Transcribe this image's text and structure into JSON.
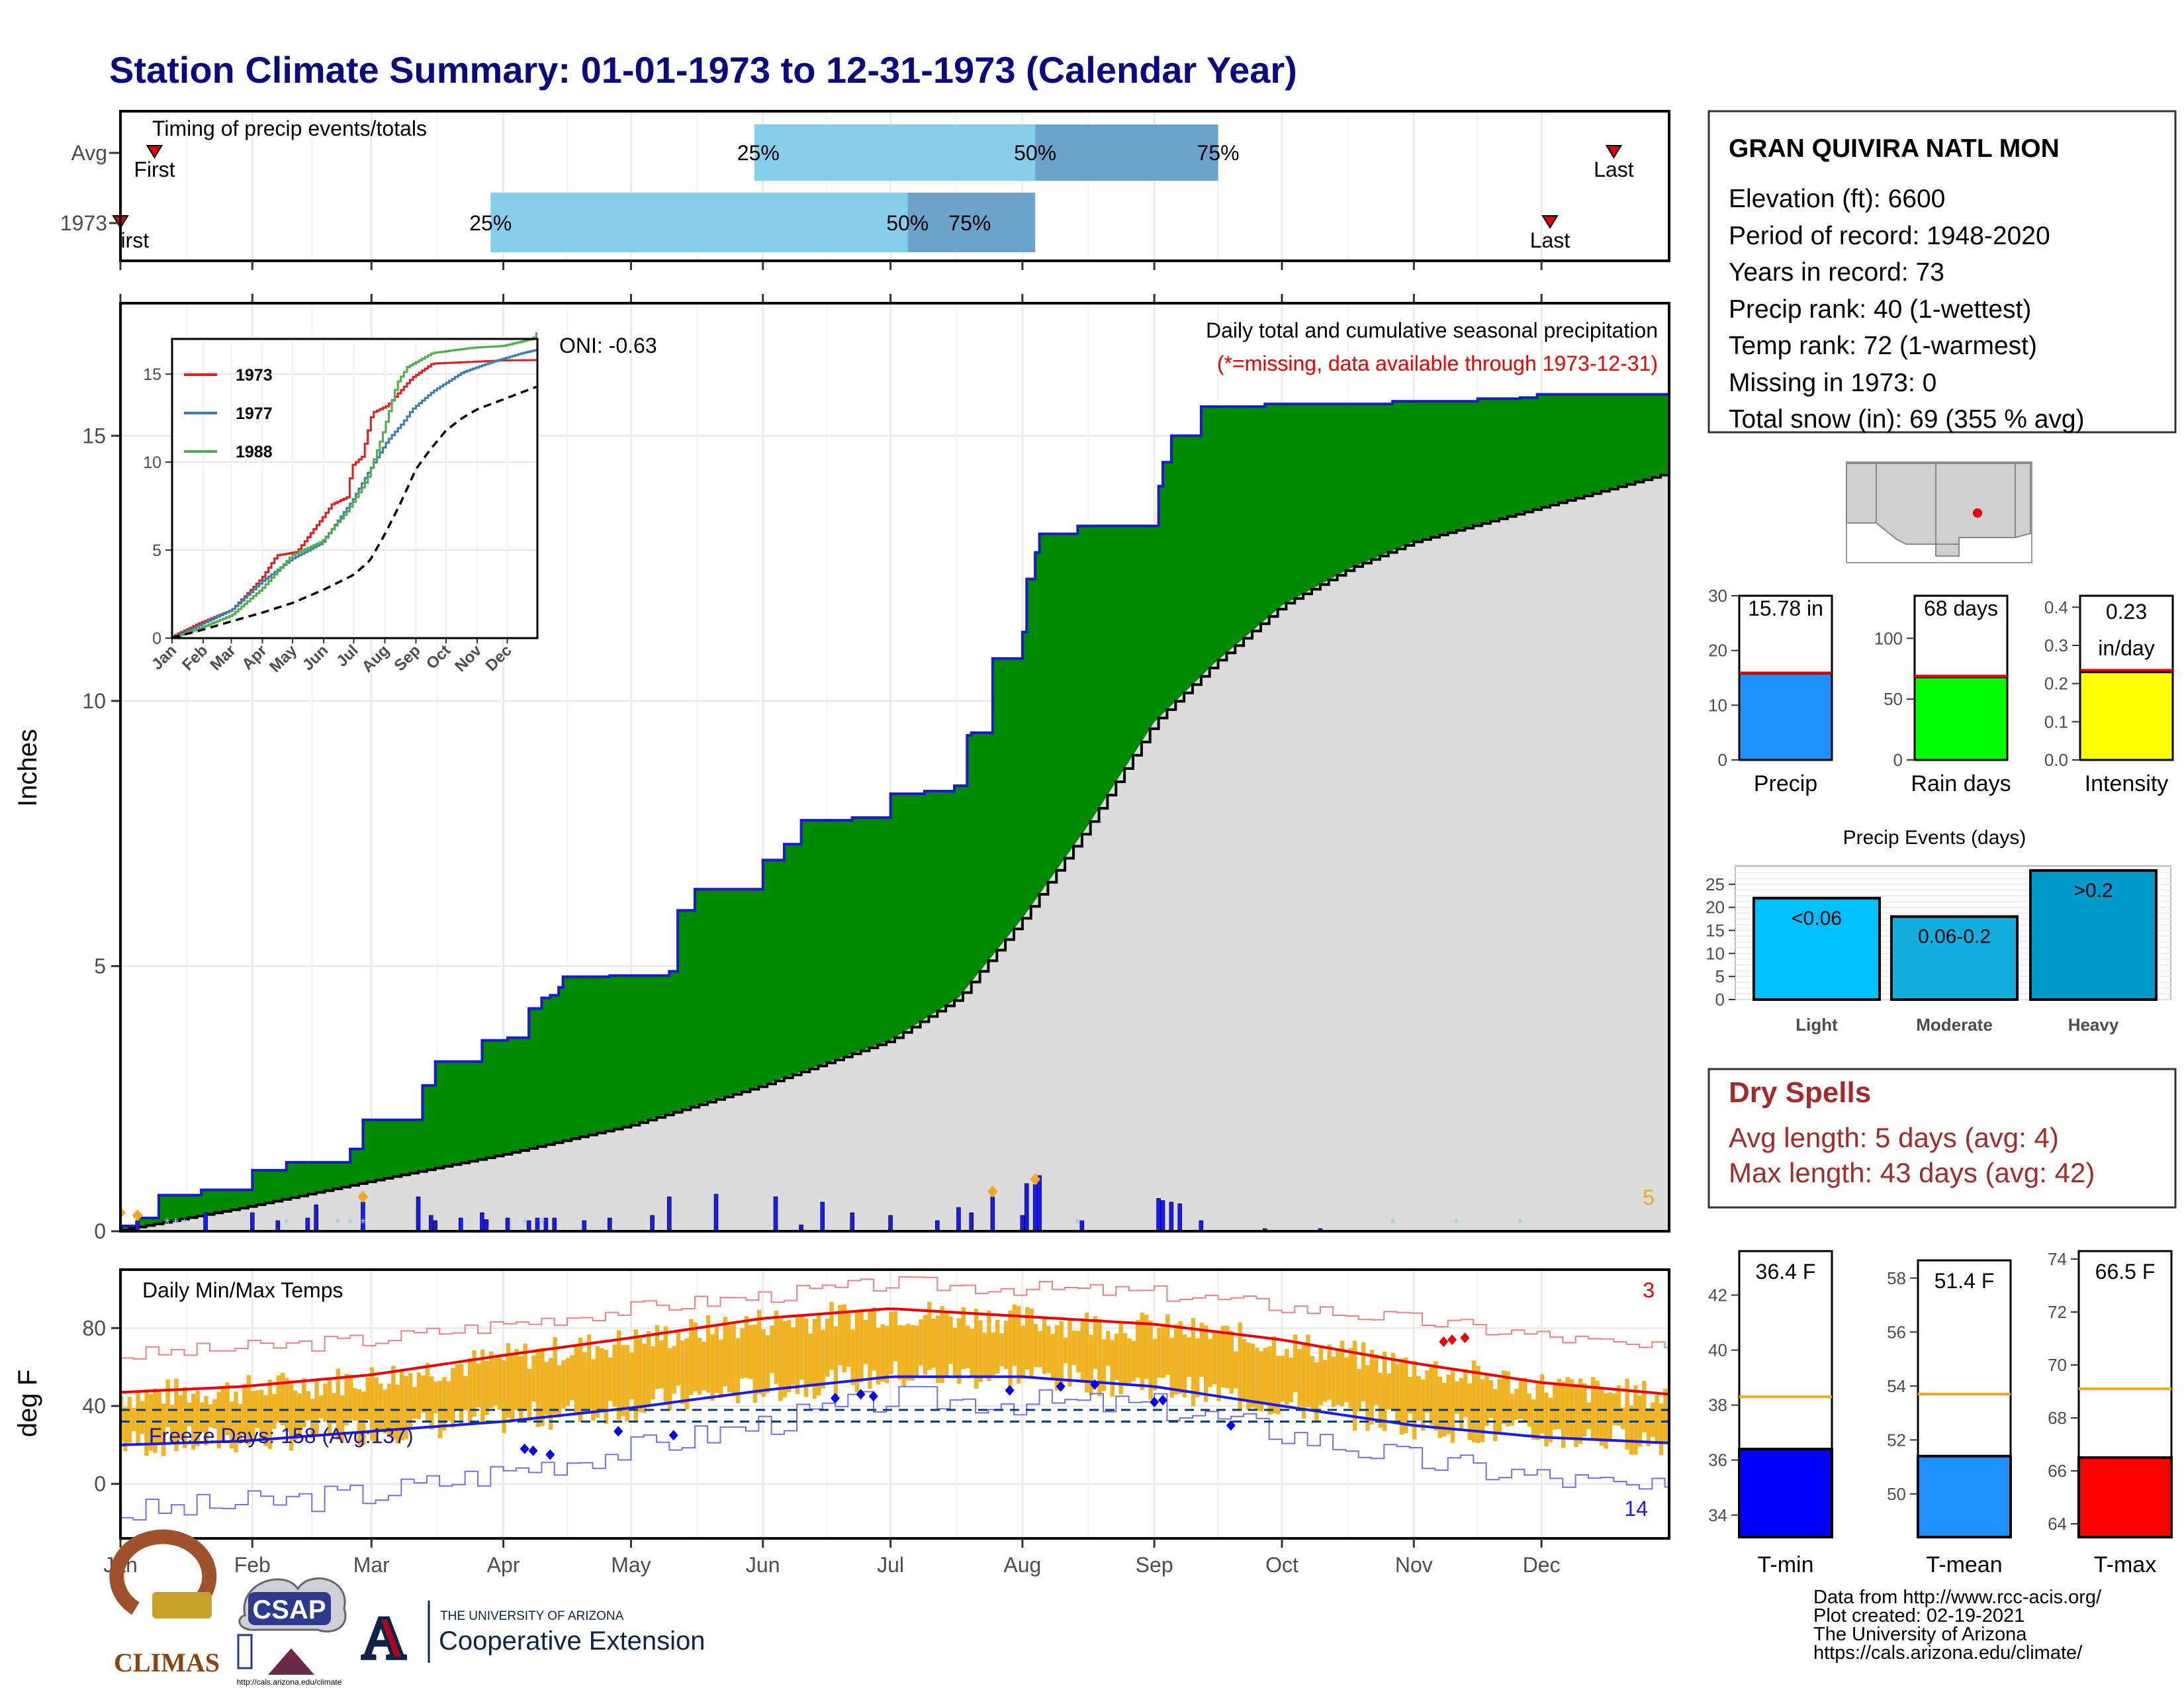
{
  "title": "Station Climate Summary: 01-01-1973 to 12-31-1973 (Calendar Year)",
  "colors": {
    "title": "#0a0a80",
    "q_light": "#87ceeb",
    "q_dark": "#6ba3cc",
    "marker": "#dd0000",
    "cum_fill": "#008a00",
    "cum_line": "#1a1acc",
    "clim_fill": "#dcdcdc",
    "daily_bar": "#1a1aee",
    "snow": "#87ceeb",
    "temp_bar": "#f0b323",
    "tmax_avg": "#ee0000",
    "tmin_avg": "#1a1aee",
    "dry_text": "#a52a2a",
    "precip_bar": "#1e90ff",
    "raindays_bar": "#00ff00",
    "intensity_bar": "#ffff00",
    "light_bar": "#00bfff",
    "moderate_bar": "#12aee0",
    "heavy_bar": "#0099cc",
    "tmin_bar": "#0000ff",
    "tmean_bar": "#1e90ff",
    "tmax_bar": "#ff0000",
    "orange_avg": "#f5a623"
  },
  "timing": {
    "label": "Timing of precip events/totals",
    "row_labels": [
      "Avg",
      "1973"
    ],
    "pct_labels": [
      "25%",
      "50%",
      "75%"
    ],
    "first_label": "First",
    "last_label": "Last",
    "avg": {
      "first_doy": 9,
      "q25_doy": 150,
      "q50_doy": 216,
      "q75_doy": 259,
      "last_doy": 352
    },
    "y1973": {
      "first_doy": 1,
      "q25_doy": 88,
      "q50_doy": 186,
      "q75_doy": 216,
      "last_doy": 337
    }
  },
  "precip_panel": {
    "ylabel": "Inches",
    "annotation_title": "Daily total and cumulative seasonal precipitation",
    "annotation_missing": "(*=missing, data available through 1973-12-31)",
    "oni": "ONI: -0.63",
    "corner_count": "5"
  },
  "temp_panel": {
    "label": "Daily Min/Max Temps",
    "ylabel": "deg F",
    "freeze_label": "Freeze Days: 158 (Avg:137)",
    "count_high": "3",
    "count_low": "14"
  },
  "x_months": [
    "Jan",
    "Feb",
    "Mar",
    "Apr",
    "May",
    "Jun",
    "Jul",
    "Aug",
    "Sep",
    "Oct",
    "Nov",
    "Dec"
  ],
  "inset_months": [
    "Jan",
    "Feb",
    "Mar",
    "Apr",
    "May",
    "Jun",
    "Jul",
    "Aug",
    "Sep",
    "Oct",
    "Nov",
    "Dec"
  ],
  "station": {
    "name": "GRAN QUIVIRA NATL MON",
    "lines": [
      "Elevation (ft): 6600",
      "Period of record: 1948-2020",
      "Years in record: 73",
      "Precip rank: 40 (1-wettest)",
      "Temp rank: 72 (1-warmest)",
      "Missing in 1973: 0",
      "Total snow (in): 69 (355 % avg)"
    ]
  },
  "summary_bars": [
    {
      "label": "Precip",
      "value_text": "15.78 in",
      "value": 15.78,
      "avg": 15.9,
      "ymax": 30,
      "ticks": [
        0,
        10,
        20,
        30
      ],
      "color_key": "precip_bar"
    },
    {
      "label": "Rain days",
      "value_text": "68 days",
      "value": 68,
      "avg": 69,
      "ymax": 135,
      "ticks": [
        0,
        50,
        100
      ],
      "color_key": "raindays_bar"
    },
    {
      "label": "Intensity",
      "value_text": "0.23",
      "value_text2": "in/day",
      "value": 0.23,
      "avg": 0.235,
      "ymax": 0.43,
      "ticks": [
        0.0,
        0.1,
        0.2,
        0.3,
        0.4
      ],
      "color_key": "intensity_bar"
    }
  ],
  "events": {
    "title": "Precip Events (days)",
    "ticks": [
      0,
      5,
      10,
      15,
      20,
      25
    ],
    "ymax": 29,
    "bars": [
      {
        "label": "Light",
        "bar_text": "<0.06",
        "value": 22,
        "color_key": "light_bar"
      },
      {
        "label": "Moderate",
        "bar_text": "0.06-0.2",
        "value": 18,
        "color_key": "moderate_bar"
      },
      {
        "label": "Heavy",
        "bar_text": ">0.2",
        "value": 28,
        "color_key": "heavy_bar"
      }
    ]
  },
  "dry_spells": {
    "title": "Dry Spells",
    "line1": "Avg length: 5 days (avg: 4)",
    "line2": "Max length: 43 days (avg: 42)"
  },
  "temp_bars": [
    {
      "label": "T-min",
      "value_text": "36.4 F",
      "value": 36.4,
      "avg": 38.3,
      "ymin": 33.2,
      "ymax": 43.6,
      "ticks": [
        34,
        36,
        38,
        40,
        42
      ],
      "color_key": "tmin_bar"
    },
    {
      "label": "T-mean",
      "value_text": "51.4 F",
      "value": 51.4,
      "avg": 53.7,
      "ymin": 48.4,
      "ymax": 59.0,
      "ticks": [
        50,
        52,
        54,
        56,
        58
      ],
      "color_key": "tmean_bar"
    },
    {
      "label": "T-max",
      "value_text": "66.5 F",
      "value": 66.5,
      "avg": 69.1,
      "ymin": 63.5,
      "ymax": 74.3,
      "ticks": [
        64,
        66,
        68,
        70,
        72,
        74
      ],
      "color_key": "tmax_bar"
    }
  ],
  "footer": {
    "lines": [
      "Data from http://www.rcc-acis.org/",
      "Plot created: 02-19-2021",
      "The University of Arizona",
      "https://cals.arizona.edu/climate/"
    ],
    "climas": "CLIMAS",
    "csap": "CSAP",
    "csap_url": "http://cals.arizona.edu/climate",
    "ua_small": "THE UNIVERSITY OF ARIZONA",
    "ua_big": "Cooperative Extension",
    "ua_letter": "A"
  },
  "chart_data": [
    {
      "type": "area",
      "title": "Daily total and cumulative seasonal precipitation",
      "ylabel": "Inches",
      "ylim": [
        0,
        17.5
      ],
      "yticks": [
        0,
        5,
        10,
        15
      ],
      "x_unit": "day of year 1973",
      "series": [
        {
          "name": "1973",
          "x": [
            1,
            5,
            10,
            20,
            32,
            40,
            47,
            55,
            58,
            68,
            72,
            75,
            81,
            86,
            92,
            97,
            100,
            102,
            104,
            105,
            110,
            116,
            130,
            132,
            136,
            140,
            152,
            157,
            161,
            165,
            173,
            182,
            190,
            197,
            200,
            201,
            205,
            206,
            213,
            214,
            216,
            217,
            226,
            240,
            245,
            246,
            248,
            255,
            270,
            300,
            320,
            330,
            334,
            350,
            365
          ],
          "y": [
            0.1,
            0.25,
            0.68,
            0.78,
            1.15,
            1.3,
            1.3,
            1.55,
            2.1,
            2.1,
            2.75,
            3.2,
            3.2,
            3.6,
            3.65,
            4.2,
            4.4,
            4.45,
            4.6,
            4.8,
            4.8,
            4.82,
            4.9,
            6.05,
            6.45,
            6.45,
            7.0,
            7.3,
            7.75,
            7.75,
            7.8,
            8.25,
            8.3,
            8.4,
            9.35,
            9.4,
            9.4,
            10.8,
            11.3,
            12.3,
            12.8,
            13.15,
            13.3,
            13.3,
            14.05,
            14.5,
            15.0,
            15.55,
            15.6,
            15.65,
            15.7,
            15.72,
            15.78,
            15.78,
            15.78
          ]
        },
        {
          "name": "Avg",
          "x": [
            1,
            30,
            60,
            91,
            121,
            152,
            182,
            198,
            213,
            228,
            244,
            258,
            274,
            290,
            305,
            335,
            365
          ],
          "y": [
            0.02,
            0.45,
            0.95,
            1.45,
            2.0,
            2.75,
            3.6,
            4.4,
            5.9,
            7.6,
            9.6,
            10.7,
            11.8,
            12.5,
            13.0,
            13.65,
            14.3
          ]
        }
      ],
      "daily_totals_doy": [
        1,
        5,
        21,
        32,
        38,
        45,
        47,
        58,
        71,
        74,
        75,
        81,
        86,
        87,
        92,
        97,
        99,
        101,
        103,
        110,
        116,
        126,
        130,
        141,
        155,
        161,
        166,
        173,
        182,
        193,
        198,
        201,
        206,
        213,
        214,
        216,
        217,
        227,
        245,
        246,
        248,
        250,
        255,
        270,
        283
      ],
      "daily_totals_in": [
        0.1,
        0.2,
        0.35,
        0.35,
        0.2,
        0.25,
        0.5,
        0.55,
        0.65,
        0.3,
        0.2,
        0.25,
        0.35,
        0.22,
        0.25,
        0.2,
        0.25,
        0.25,
        0.25,
        0.2,
        0.25,
        0.3,
        0.65,
        0.7,
        0.65,
        0.12,
        0.55,
        0.35,
        0.3,
        0.2,
        0.45,
        0.35,
        0.65,
        0.3,
        0.9,
        0.88,
        1.05,
        0.2,
        0.62,
        0.58,
        0.55,
        0.52,
        0.2,
        0.05,
        0.05
      ]
    },
    {
      "type": "line",
      "title": "",
      "ylim": [
        0,
        17
      ],
      "yticks": [
        0,
        5,
        10,
        15
      ],
      "x_unit": "day of year",
      "series": [
        {
          "name": "1973",
          "x": [
            1,
            30,
            60,
            90,
            105,
            125,
            150,
            160,
            175,
            180,
            190,
            200,
            215,
            240,
            260,
            300,
            330,
            365
          ],
          "y": [
            0.1,
            0.9,
            1.6,
            3.4,
            4.7,
            4.9,
            6.8,
            7.6,
            8.0,
            9.8,
            10.3,
            12.8,
            13.2,
            14.8,
            15.6,
            15.7,
            15.78,
            15.8
          ]
        },
        {
          "name": "1977",
          "x": [
            1,
            30,
            60,
            90,
            120,
            150,
            180,
            200,
            215,
            230,
            240,
            260,
            290,
            320,
            350,
            365
          ],
          "y": [
            0.0,
            0.8,
            1.6,
            3.2,
            4.5,
            5.4,
            7.8,
            9.8,
            11.2,
            12.2,
            13.0,
            14.0,
            15.1,
            15.7,
            16.2,
            16.4
          ]
        },
        {
          "name": "1988",
          "x": [
            1,
            30,
            60,
            90,
            120,
            150,
            175,
            195,
            210,
            225,
            235,
            260,
            300,
            330,
            360,
            365
          ],
          "y": [
            0.0,
            0.6,
            1.3,
            2.8,
            4.7,
            5.5,
            7.2,
            9.0,
            11.5,
            14.5,
            15.4,
            16.2,
            16.5,
            16.6,
            17.0,
            17.4
          ]
        },
        {
          "name": "Avg",
          "x": [
            1,
            30,
            60,
            91,
            121,
            152,
            182,
            198,
            213,
            228,
            244,
            258,
            274,
            290,
            305,
            335,
            365
          ],
          "y": [
            0.02,
            0.45,
            0.95,
            1.45,
            2.0,
            2.75,
            3.6,
            4.4,
            5.9,
            7.6,
            9.6,
            10.7,
            11.8,
            12.5,
            13.0,
            13.65,
            14.3
          ]
        }
      ]
    },
    {
      "type": "bar",
      "title": "Daily Min/Max Temps",
      "ylabel": "deg F",
      "ylim": [
        -28,
        110
      ],
      "yticks": [
        0,
        40,
        80
      ],
      "x_unit": "day of year 1973",
      "tmax_avg_doy": [
        1,
        30,
        60,
        91,
        121,
        152,
        182,
        213,
        244,
        274,
        305,
        335,
        365
      ],
      "tmax_avg": [
        47,
        50,
        56,
        66,
        75,
        85,
        90,
        86,
        82,
        74,
        62,
        52,
        46
      ],
      "tmin_avg_doy": [
        1,
        30,
        60,
        91,
        121,
        152,
        182,
        213,
        244,
        274,
        305,
        335,
        365
      ],
      "tmin_avg": [
        20,
        22,
        27,
        32,
        39,
        48,
        55,
        55,
        50,
        40,
        30,
        24,
        21
      ],
      "tmax_record_doy": [
        1,
        60,
        121,
        182,
        244,
        305,
        365
      ],
      "tmax_record": [
        66,
        74,
        90,
        103,
        98,
        84,
        68
      ],
      "tmin_record_doy": [
        1,
        60,
        121,
        182,
        244,
        305,
        365
      ],
      "tmin_record": [
        -15,
        -5,
        18,
        44,
        40,
        12,
        -5
      ],
      "freeze_line": 32
    }
  ]
}
